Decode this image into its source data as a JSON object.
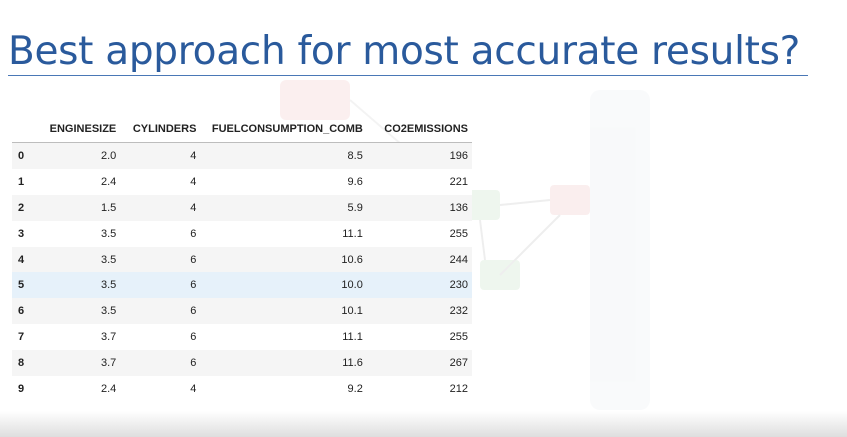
{
  "slide": {
    "title": "Best approach for most accurate results?"
  },
  "table": {
    "columns": [
      "ENGINESIZE",
      "CYLINDERS",
      "FUELCONSUMPTION_COMB",
      "CO2EMISSIONS"
    ],
    "rows": [
      {
        "index": "0",
        "enginesize": "2.0",
        "cylinders": "4",
        "fuelconsumption_comb": "8.5",
        "co2emissions": "196"
      },
      {
        "index": "1",
        "enginesize": "2.4",
        "cylinders": "4",
        "fuelconsumption_comb": "9.6",
        "co2emissions": "221"
      },
      {
        "index": "2",
        "enginesize": "1.5",
        "cylinders": "4",
        "fuelconsumption_comb": "5.9",
        "co2emissions": "136"
      },
      {
        "index": "3",
        "enginesize": "3.5",
        "cylinders": "6",
        "fuelconsumption_comb": "11.1",
        "co2emissions": "255"
      },
      {
        "index": "4",
        "enginesize": "3.5",
        "cylinders": "6",
        "fuelconsumption_comb": "10.6",
        "co2emissions": "244"
      },
      {
        "index": "5",
        "enginesize": "3.5",
        "cylinders": "6",
        "fuelconsumption_comb": "10.0",
        "co2emissions": "230"
      },
      {
        "index": "6",
        "enginesize": "3.5",
        "cylinders": "6",
        "fuelconsumption_comb": "10.1",
        "co2emissions": "232"
      },
      {
        "index": "7",
        "enginesize": "3.7",
        "cylinders": "6",
        "fuelconsumption_comb": "11.1",
        "co2emissions": "255"
      },
      {
        "index": "8",
        "enginesize": "3.7",
        "cylinders": "6",
        "fuelconsumption_comb": "11.6",
        "co2emissions": "267"
      },
      {
        "index": "9",
        "enginesize": "2.4",
        "cylinders": "4",
        "fuelconsumption_comb": "9.2",
        "co2emissions": "212"
      }
    ],
    "highlighted_row": "5"
  },
  "colors": {
    "title_text": "#2a5a9c",
    "title_rule": "#4a78b6",
    "row_stripe": "#f5f5f5",
    "row_highlight": "#e6f1fa"
  },
  "icons": {
    "background_watermark": "network-diagram-watermark-icon"
  }
}
